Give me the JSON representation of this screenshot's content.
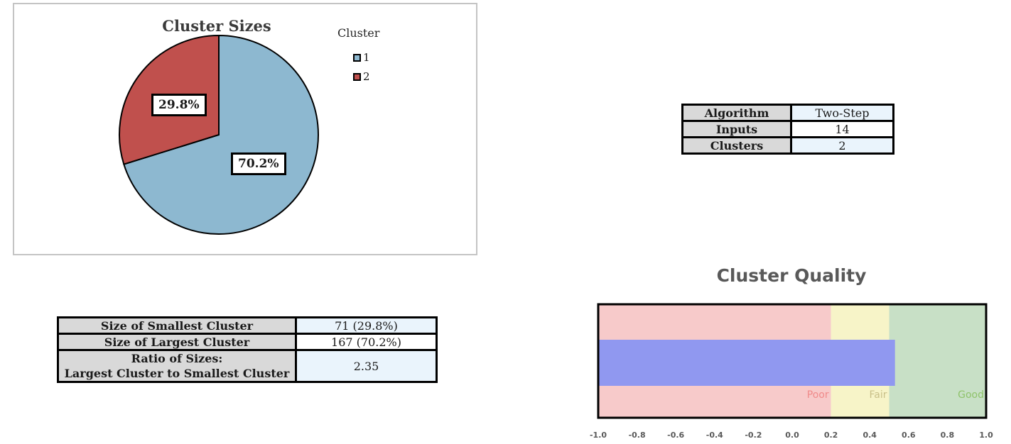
{
  "pie_chart": {
    "title": "Cluster Sizes",
    "legend_title": "Cluster",
    "legend_items": [
      {
        "label": "1",
        "color": "#8db8d0"
      },
      {
        "label": "2",
        "color": "#c0504d"
      }
    ]
  },
  "model_summary": {
    "rows": [
      {
        "label": "Algorithm",
        "value": "Two-Step"
      },
      {
        "label": "Inputs",
        "value": "14"
      },
      {
        "label": "Clusters",
        "value": "2"
      }
    ]
  },
  "size_summary": {
    "rows": [
      {
        "label": "Size of Smallest Cluster",
        "value": "71 (29.8%)"
      },
      {
        "label": "Size of Largest Cluster",
        "value": "167 (70.2%)"
      },
      {
        "label_line1": "Ratio of Sizes:",
        "label_line2": "Largest Cluster to Smallest Cluster",
        "value": "2.35"
      }
    ]
  },
  "quality_chart": {
    "title": "Cluster Quality",
    "bands": [
      {
        "label": "Poor",
        "from": -1.0,
        "to": 0.2,
        "color": "#f7caca",
        "text_color": "#f08a8a"
      },
      {
        "label": "Fair",
        "from": 0.2,
        "to": 0.5,
        "color": "#f7f4c8",
        "text_color": "#c9c089"
      },
      {
        "label": "Good",
        "from": 0.5,
        "to": 1.0,
        "color": "#c8e0c6",
        "text_color": "#8fc36b"
      }
    ],
    "bar_color": "#9098f0"
  },
  "chart_data": [
    {
      "type": "pie",
      "title": "Cluster Sizes",
      "legend_title": "Cluster",
      "categories": [
        "1",
        "2"
      ],
      "values": [
        70.2,
        29.8
      ],
      "labels": [
        "70.2%",
        "29.8%"
      ],
      "colors": [
        "#8db8d0",
        "#c0504d"
      ]
    },
    {
      "type": "bar",
      "title": "Cluster Quality",
      "orientation": "horizontal",
      "value": 0.53,
      "xlim": [
        -1.0,
        1.0
      ],
      "ticks": [
        "-1.0",
        "-0.8",
        "-0.6",
        "-0.4",
        "-0.2",
        "0.0",
        "0.2",
        "0.4",
        "0.6",
        "0.8",
        "1.0"
      ]
    }
  ]
}
